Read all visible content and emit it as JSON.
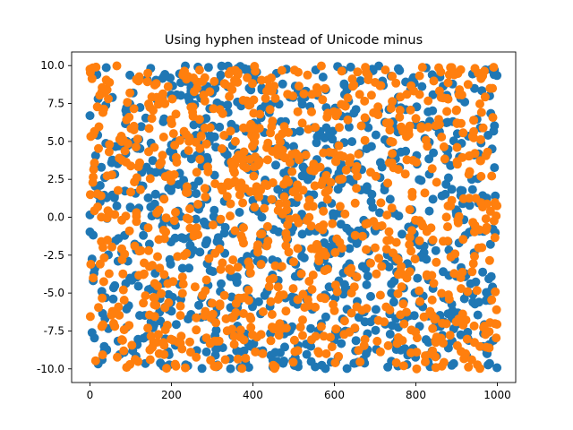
{
  "chart_data": {
    "type": "scatter",
    "title": "Using hyphen instead of Unicode minus",
    "xlim": [
      -45,
      1045
    ],
    "ylim": [
      -10.9,
      10.9
    ],
    "x_ticks": [
      0,
      200,
      400,
      600,
      800,
      1000
    ],
    "x_tick_labels": [
      "0",
      "200",
      "400",
      "600",
      "800",
      "1000"
    ],
    "y_ticks": [
      10.0,
      7.5,
      5.0,
      2.5,
      0.0,
      -2.5,
      -5.0,
      -7.5,
      -10.0
    ],
    "y_tick_labels": [
      "10.0",
      "7.5",
      "5.0",
      "2.5",
      "0.0",
      "-2.5",
      "-5.0",
      "-7.5",
      "-10.0"
    ],
    "grid": false,
    "series": [
      {
        "color": "#1f77b4",
        "n_points": 1000,
        "points": [
          [
            0,
            6.7
          ],
          [
            12,
            9.6
          ],
          [
            25,
            2.1
          ],
          [
            38,
            -5.3
          ],
          [
            55,
            7.9
          ],
          [
            70,
            -1.4
          ],
          [
            88,
            4.2
          ],
          [
            105,
            -8.8
          ],
          [
            120,
            0.6
          ],
          [
            140,
            9.1
          ],
          [
            160,
            -3.7
          ],
          [
            180,
            6.3
          ],
          [
            200,
            -6.2
          ],
          [
            220,
            2.9
          ],
          [
            240,
            -9.8
          ],
          [
            260,
            5.4
          ],
          [
            280,
            -0.3
          ],
          [
            300,
            8.2
          ],
          [
            320,
            -4.9
          ],
          [
            340,
            3.6
          ],
          [
            360,
            -7.4
          ],
          [
            380,
            9.8
          ],
          [
            400,
            1.1
          ],
          [
            420,
            -2.8
          ],
          [
            440,
            6.9
          ],
          [
            460,
            -9.5
          ],
          [
            480,
            4.7
          ],
          [
            500,
            -5.6
          ],
          [
            520,
            0.2
          ],
          [
            540,
            7.3
          ],
          [
            560,
            -3.1
          ],
          [
            580,
            5.9
          ],
          [
            600,
            -8.1
          ],
          [
            620,
            2.4
          ],
          [
            640,
            9.9
          ],
          [
            660,
            -6.6
          ],
          [
            680,
            1.8
          ],
          [
            700,
            -0.9
          ],
          [
            720,
            8.7
          ],
          [
            740,
            -4.4
          ],
          [
            760,
            3.3
          ],
          [
            780,
            -9.1
          ],
          [
            800,
            6.1
          ],
          [
            820,
            -1.9
          ],
          [
            840,
            9.4
          ],
          [
            860,
            -7.2
          ],
          [
            880,
            2.6
          ],
          [
            900,
            -3.9
          ],
          [
            920,
            7.6
          ],
          [
            940,
            -5.1
          ],
          [
            960,
            4.9
          ],
          [
            980,
            -8.4
          ],
          [
            995,
            1.4
          ],
          [
            30,
            -9.4
          ],
          [
            150,
            -6.9
          ],
          [
            270,
            -2.3
          ],
          [
            390,
            -9.9
          ],
          [
            510,
            -9.6
          ],
          [
            630,
            -3.3
          ],
          [
            750,
            -2.9
          ]
        ]
      },
      {
        "color": "#ff7f0e",
        "n_points": 1000,
        "points": [
          [
            2,
            -3.1
          ],
          [
            15,
            9.9
          ],
          [
            28,
            -1.6
          ],
          [
            42,
            8.4
          ],
          [
            58,
            -7.0
          ],
          [
            72,
            3.9
          ],
          [
            90,
            -9.9
          ],
          [
            108,
            6.0
          ],
          [
            125,
            -2.2
          ],
          [
            142,
            9.5
          ],
          [
            162,
            -5.8
          ],
          [
            182,
            1.2
          ],
          [
            202,
            7.8
          ],
          [
            222,
            -8.3
          ],
          [
            242,
            4.4
          ],
          [
            262,
            -0.7
          ],
          [
            282,
            9.2
          ],
          [
            302,
            -6.4
          ],
          [
            322,
            2.0
          ],
          [
            342,
            -3.4
          ],
          [
            362,
            8.9
          ],
          [
            382,
            -9.3
          ],
          [
            402,
            5.2
          ],
          [
            422,
            -1.1
          ],
          [
            442,
            7.1
          ],
          [
            462,
            -4.6
          ],
          [
            482,
            0.9
          ],
          [
            502,
            9.7
          ],
          [
            522,
            -7.8
          ],
          [
            542,
            3.1
          ],
          [
            562,
            -2.6
          ],
          [
            582,
            6.6
          ],
          [
            602,
            -9.6
          ],
          [
            622,
            4.0
          ],
          [
            642,
            -5.0
          ],
          [
            662,
            8.1
          ],
          [
            682,
            -0.4
          ],
          [
            702,
            2.7
          ],
          [
            722,
            -6.9
          ],
          [
            742,
            9.3
          ],
          [
            762,
            -3.6
          ],
          [
            782,
            5.7
          ],
          [
            802,
            -8.9
          ],
          [
            822,
            1.6
          ],
          [
            842,
            -1.5
          ],
          [
            862,
            7.9
          ],
          [
            882,
            -5.4
          ],
          [
            902,
            3.5
          ],
          [
            922,
            -9.0
          ],
          [
            942,
            6.4
          ],
          [
            962,
            -2.0
          ],
          [
            982,
            8.5
          ],
          [
            998,
            -6.1
          ],
          [
            48,
            4.8
          ],
          [
            170,
            -9.0
          ],
          [
            290,
            3.0
          ],
          [
            410,
            -7.9
          ],
          [
            530,
            4.1
          ],
          [
            650,
            -7.3
          ],
          [
            770,
            -9.8
          ]
        ]
      }
    ]
  }
}
